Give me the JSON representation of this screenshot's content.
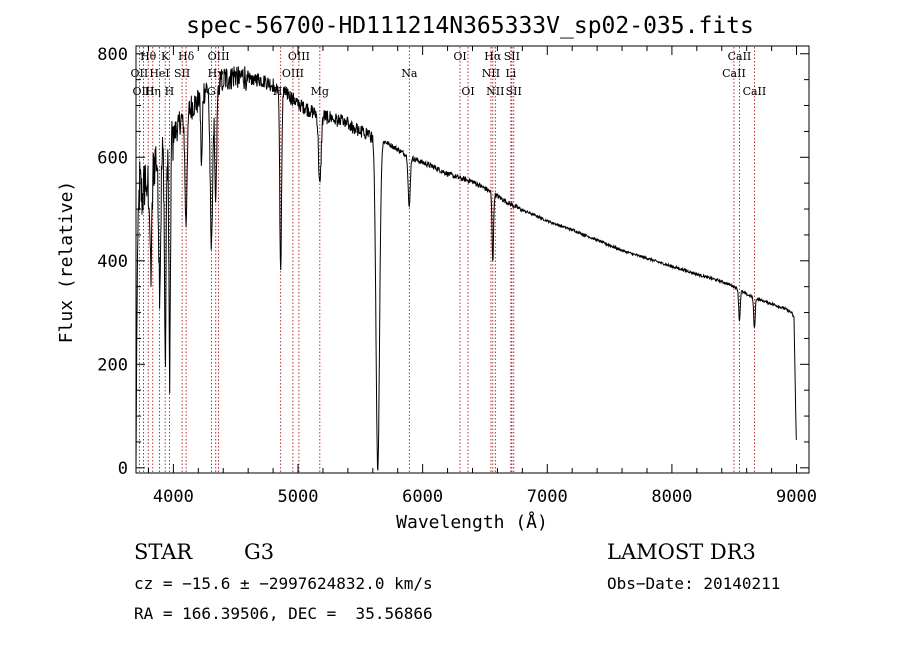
{
  "chart_data": {
    "type": "line",
    "title": "spec-56700-HD111214N365333V_sp02-035.fits",
    "xlabel": "Wavelength (Å)",
    "ylabel": "Flux (relative)",
    "xlim": [
      3700,
      9100
    ],
    "ylim": [
      -10,
      815
    ],
    "xticks": [
      4000,
      5000,
      6000,
      7000,
      8000,
      9000
    ],
    "xtick_labels": [
      "4000",
      "5000",
      "6000",
      "7000",
      "8000",
      "9000"
    ],
    "yticks": [
      0,
      200,
      400,
      600,
      800
    ],
    "ytick_labels": [
      "0",
      "200",
      "400",
      "600",
      "800"
    ],
    "spectrum_nodes": [
      [
        3700,
        0
      ],
      [
        3705,
        210
      ],
      [
        3715,
        470
      ],
      [
        3730,
        550
      ],
      [
        3750,
        520
      ],
      [
        3775,
        560
      ],
      [
        3800,
        550
      ],
      [
        3830,
        580
      ],
      [
        3860,
        600
      ],
      [
        3900,
        600
      ],
      [
        3950,
        620
      ],
      [
        4000,
        640
      ],
      [
        4050,
        670
      ],
      [
        4100,
        680
      ],
      [
        4150,
        700
      ],
      [
        4200,
        710
      ],
      [
        4250,
        730
      ],
      [
        4300,
        740
      ],
      [
        4400,
        750
      ],
      [
        4500,
        760
      ],
      [
        4600,
        755
      ],
      [
        4700,
        750
      ],
      [
        4800,
        740
      ],
      [
        4900,
        725
      ],
      [
        5000,
        705
      ],
      [
        5100,
        690
      ],
      [
        5200,
        680
      ],
      [
        5300,
        675
      ],
      [
        5400,
        665
      ],
      [
        5500,
        650
      ],
      [
        5550,
        648
      ],
      [
        5600,
        640
      ],
      [
        5700,
        630
      ],
      [
        5800,
        615
      ],
      [
        5900,
        600
      ],
      [
        6000,
        590
      ],
      [
        6100,
        580
      ],
      [
        6200,
        568
      ],
      [
        6300,
        560
      ],
      [
        6400,
        553
      ],
      [
        6500,
        540
      ],
      [
        6600,
        525
      ],
      [
        6700,
        510
      ],
      [
        6800,
        498
      ],
      [
        6900,
        488
      ],
      [
        7000,
        477
      ],
      [
        7100,
        468
      ],
      [
        7200,
        460
      ],
      [
        7300,
        450
      ],
      [
        7400,
        440
      ],
      [
        7500,
        430
      ],
      [
        7600,
        420
      ],
      [
        7700,
        412
      ],
      [
        7800,
        405
      ],
      [
        7900,
        397
      ],
      [
        8000,
        389
      ],
      [
        8100,
        382
      ],
      [
        8200,
        374
      ],
      [
        8300,
        367
      ],
      [
        8400,
        360
      ],
      [
        8500,
        350
      ],
      [
        8600,
        335
      ],
      [
        8700,
        325
      ],
      [
        8800,
        317
      ],
      [
        8900,
        308
      ],
      [
        8960,
        300
      ],
      [
        8980,
        290
      ],
      [
        8990,
        150
      ],
      [
        9000,
        30
      ]
    ],
    "absorption_features": [
      {
        "center": 3820,
        "depth": 190,
        "width": 8
      },
      {
        "center": 3890,
        "depth": 240,
        "width": 8
      },
      {
        "center": 3935,
        "depth": 420,
        "width": 6
      },
      {
        "center": 3970,
        "depth": 460,
        "width": 6
      },
      {
        "center": 4101,
        "depth": 210,
        "width": 8
      },
      {
        "center": 4226,
        "depth": 140,
        "width": 6
      },
      {
        "center": 4305,
        "depth": 300,
        "width": 10
      },
      {
        "center": 4340,
        "depth": 230,
        "width": 8
      },
      {
        "center": 4861,
        "depth": 360,
        "width": 7
      },
      {
        "center": 5175,
        "depth": 140,
        "width": 10
      },
      {
        "center": 5640,
        "depth": 640,
        "width": 14
      },
      {
        "center": 5892,
        "depth": 100,
        "width": 8
      },
      {
        "center": 6563,
        "depth": 130,
        "width": 6
      },
      {
        "center": 8542,
        "depth": 60,
        "width": 6
      },
      {
        "center": 8662,
        "depth": 60,
        "width": 6
      }
    ],
    "noise_amplitude": [
      {
        "from": 3700,
        "to": 4000,
        "amp": 110
      },
      {
        "from": 4000,
        "to": 4600,
        "amp": 55
      },
      {
        "from": 4600,
        "to": 5600,
        "amp": 30
      },
      {
        "from": 5600,
        "to": 6800,
        "amp": 10
      },
      {
        "from": 6800,
        "to": 9000,
        "amp": 5
      }
    ],
    "spectral_lines": [
      {
        "label": "Hθ",
        "wavelength": 3798,
        "row": 0
      },
      {
        "label": "OII",
        "wavelength": 3727,
        "row": 1
      },
      {
        "label": "OIII",
        "wavelength": 3760,
        "row": 2
      },
      {
        "label": "Hη",
        "wavelength": 3835,
        "row": 2
      },
      {
        "label": "HeI",
        "wavelength": 3889,
        "row": 1
      },
      {
        "label": "K",
        "wavelength": 3934,
        "row": 0
      },
      {
        "label": "SII",
        "wavelength": 4070,
        "row": 1
      },
      {
        "label": "H",
        "wavelength": 3968,
        "row": 2
      },
      {
        "label": "Hδ",
        "wavelength": 4102,
        "row": 0
      },
      {
        "label": "OIII",
        "wavelength": 4363,
        "row": 0
      },
      {
        "label": "Hγ",
        "wavelength": 4340,
        "row": 1
      },
      {
        "label": "G",
        "wavelength": 4305,
        "row": 2
      },
      {
        "label": "OIII",
        "wavelength": 5007,
        "row": 0
      },
      {
        "label": "OIII",
        "wavelength": 4959,
        "row": 1
      },
      {
        "label": "Hβ",
        "wavelength": 4861,
        "row": 2
      },
      {
        "label": "Mg",
        "wavelength": 5175,
        "row": 2
      },
      {
        "label": "Na",
        "wavelength": 5893,
        "row": 1
      },
      {
        "label": "OI",
        "wavelength": 6300,
        "row": 0
      },
      {
        "label": "OI",
        "wavelength": 6364,
        "row": 2
      },
      {
        "label": "Hα",
        "wavelength": 6563,
        "row": 0
      },
      {
        "label": "NII",
        "wavelength": 6548,
        "row": 1
      },
      {
        "label": "NII",
        "wavelength": 6583,
        "row": 2
      },
      {
        "label": "SII",
        "wavelength": 6716,
        "row": 0
      },
      {
        "label": "Li",
        "wavelength": 6708,
        "row": 1
      },
      {
        "label": "SII",
        "wavelength": 6731,
        "row": 2
      },
      {
        "label": "CaII",
        "wavelength": 8542,
        "row": 0
      },
      {
        "label": "CaII",
        "wavelength": 8498,
        "row": 1
      },
      {
        "label": "CaII",
        "wavelength": 8662,
        "row": 2
      }
    ],
    "colors": {
      "spectrum": "#000000",
      "line_markers": "#a40000",
      "axes": "#000000"
    }
  },
  "info": {
    "object_class": "STAR",
    "subclass": "G3",
    "survey": "LAMOST DR3",
    "redshift_line": "cz = −15.6 ± −2997624832.0 km/s",
    "obs_date_line": "Obs−Date: 20140211",
    "coords_line": "RA = 166.39506, DEC =  35.56866"
  }
}
